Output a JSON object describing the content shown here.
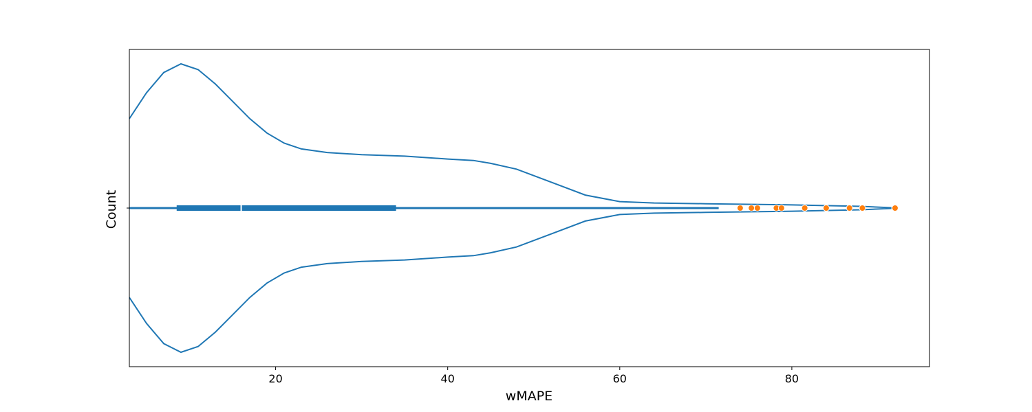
{
  "chart_data": {
    "type": "violin",
    "orientation": "horizontal",
    "xlabel": "wMAPE",
    "ylabel": "Count",
    "xlim": [
      3,
      96
    ],
    "x_ticks": [
      20,
      40,
      60,
      80
    ],
    "x_tick_labels": [
      "20",
      "40",
      "60",
      "80"
    ],
    "grid": false,
    "colors": {
      "violin": "#1f77b4",
      "outliers": "#ff7f0e",
      "median": "#ffffff"
    },
    "density_profile": [
      [
        3.0,
        0.62
      ],
      [
        5.0,
        0.8
      ],
      [
        7.0,
        0.94
      ],
      [
        9.0,
        1.0
      ],
      [
        11.0,
        0.96
      ],
      [
        13.0,
        0.86
      ],
      [
        15.0,
        0.74
      ],
      [
        17.0,
        0.62
      ],
      [
        19.0,
        0.52
      ],
      [
        21.0,
        0.45
      ],
      [
        23.0,
        0.41
      ],
      [
        26.0,
        0.385
      ],
      [
        30.0,
        0.37
      ],
      [
        35.0,
        0.36
      ],
      [
        40.0,
        0.34
      ],
      [
        43.0,
        0.33
      ],
      [
        45.0,
        0.31
      ],
      [
        48.0,
        0.27
      ],
      [
        52.0,
        0.18
      ],
      [
        56.0,
        0.09
      ],
      [
        60.0,
        0.045
      ],
      [
        64.0,
        0.035
      ],
      [
        70.0,
        0.03
      ],
      [
        80.0,
        0.022
      ],
      [
        88.0,
        0.012
      ],
      [
        91.5,
        0.003
      ]
    ],
    "box": {
      "whisker_low": 3.0,
      "q1": 8.5,
      "median": 16.0,
      "q3": 34.0,
      "whisker_high": 71.5
    },
    "outliers": [
      74.0,
      75.3,
      76.0,
      78.2,
      78.8,
      81.5,
      84.0,
      86.7,
      88.2,
      92.0
    ]
  }
}
